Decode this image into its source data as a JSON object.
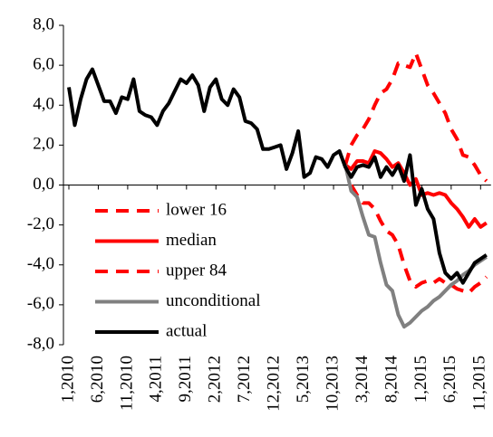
{
  "chart_data": {
    "type": "line",
    "categories": [
      "1,2010",
      null,
      null,
      null,
      null,
      "6,2010",
      null,
      null,
      null,
      null,
      "11,2010",
      null,
      null,
      null,
      null,
      "4,2011",
      null,
      null,
      null,
      null,
      "9,2011",
      null,
      null,
      null,
      null,
      "2,2012",
      null,
      null,
      null,
      null,
      "7,2012",
      null,
      null,
      null,
      null,
      "12,2012",
      null,
      null,
      null,
      null,
      "5,2013",
      null,
      null,
      null,
      null,
      "10,2013",
      null,
      null,
      null,
      null,
      "3,2014",
      null,
      null,
      null,
      null,
      "8,2014",
      null,
      null,
      null,
      null,
      "1,2015",
      null,
      null,
      null,
      null,
      "6,2015",
      null,
      null,
      null,
      null,
      "11,2015",
      null
    ],
    "ylim": [
      -8,
      8
    ],
    "yticks": [
      {
        "value": 8,
        "label": "8,0"
      },
      {
        "value": 6,
        "label": "6,0"
      },
      {
        "value": 4,
        "label": "4,0"
      },
      {
        "value": 2,
        "label": "2,0"
      },
      {
        "value": 0,
        "label": "0,0"
      },
      {
        "value": -2,
        "label": "-2,0"
      },
      {
        "value": -4,
        "label": "-4,0"
      },
      {
        "value": -6,
        "label": "-6,0"
      },
      {
        "value": -8,
        "label": "-8,0"
      }
    ],
    "legend": "lower left",
    "series": [
      {
        "name": "lower 16",
        "color": "#ff0000",
        "style": "dashed",
        "values": [
          null,
          null,
          null,
          null,
          null,
          null,
          null,
          null,
          null,
          null,
          null,
          null,
          null,
          null,
          null,
          null,
          null,
          null,
          null,
          null,
          null,
          null,
          null,
          null,
          null,
          null,
          null,
          null,
          null,
          null,
          null,
          null,
          null,
          null,
          null,
          null,
          null,
          null,
          null,
          null,
          null,
          null,
          null,
          null,
          null,
          null,
          null,
          1.0,
          2.0,
          2.5,
          2.8,
          3.3,
          4.0,
          4.6,
          4.8,
          5.3,
          6.1,
          6.0,
          5.9,
          6.6,
          5.8,
          5.0,
          4.6,
          4.1,
          3.6,
          2.8,
          2.3,
          1.5,
          1.4,
          1.0,
          0.5,
          0.2
        ]
      },
      {
        "name": "median",
        "color": "#ff0000",
        "style": "solid",
        "values": [
          null,
          null,
          null,
          null,
          null,
          null,
          null,
          null,
          null,
          null,
          null,
          null,
          null,
          null,
          null,
          null,
          null,
          null,
          null,
          null,
          null,
          null,
          null,
          null,
          null,
          null,
          null,
          null,
          null,
          null,
          null,
          null,
          null,
          null,
          null,
          null,
          null,
          null,
          null,
          null,
          null,
          null,
          null,
          null,
          null,
          null,
          null,
          1.0,
          0.8,
          1.2,
          1.2,
          1.1,
          1.7,
          1.6,
          1.3,
          0.9,
          1.1,
          0.6,
          0.0,
          0.3,
          -0.5,
          -0.4,
          -0.5,
          -0.4,
          -0.5,
          -0.9,
          -1.2,
          -1.6,
          -2.1,
          -1.7,
          -2.1,
          -1.9
        ]
      },
      {
        "name": "upper 84",
        "color": "#ff0000",
        "style": "dashed",
        "values": [
          null,
          null,
          null,
          null,
          null,
          null,
          null,
          null,
          null,
          null,
          null,
          null,
          null,
          null,
          null,
          null,
          null,
          null,
          null,
          null,
          null,
          null,
          null,
          null,
          null,
          null,
          null,
          null,
          null,
          null,
          null,
          null,
          null,
          null,
          null,
          null,
          null,
          null,
          null,
          null,
          null,
          null,
          null,
          null,
          null,
          null,
          null,
          1.0,
          0.0,
          -0.5,
          -0.9,
          -0.9,
          -1.2,
          -1.8,
          -2.3,
          -2.5,
          -3.0,
          -4.0,
          -4.8,
          -5.1,
          -4.9,
          -4.8,
          -4.9,
          -4.7,
          -4.9,
          -5.0,
          -5.2,
          -5.3,
          -5.4,
          -5.1,
          -4.9,
          -4.6
        ]
      },
      {
        "name": "unconditional",
        "color": "#808080",
        "style": "solid",
        "values": [
          null,
          null,
          null,
          null,
          null,
          null,
          null,
          null,
          null,
          null,
          null,
          null,
          null,
          null,
          null,
          null,
          null,
          null,
          null,
          null,
          null,
          null,
          null,
          null,
          null,
          null,
          null,
          null,
          null,
          null,
          null,
          null,
          null,
          null,
          null,
          null,
          null,
          null,
          null,
          null,
          null,
          null,
          null,
          null,
          null,
          null,
          null,
          1.0,
          -0.3,
          -0.6,
          -1.6,
          -2.5,
          -2.6,
          -3.9,
          -5.0,
          -5.3,
          -6.5,
          -7.1,
          -6.9,
          -6.6,
          -6.3,
          -6.1,
          -5.8,
          -5.6,
          -5.3,
          -5.0,
          -4.8,
          -4.5,
          -4.3,
          -4.0,
          -3.8,
          -3.6
        ]
      },
      {
        "name": "actual",
        "color": "#000000",
        "style": "solid",
        "values": [
          4.9,
          3.0,
          4.3,
          5.3,
          5.8,
          5.0,
          4.2,
          4.2,
          3.6,
          4.4,
          4.3,
          5.3,
          3.7,
          3.5,
          3.4,
          3.0,
          3.7,
          4.1,
          4.7,
          5.3,
          5.1,
          5.5,
          5.0,
          3.7,
          4.9,
          5.3,
          4.3,
          4.0,
          4.8,
          4.4,
          3.2,
          3.1,
          2.8,
          1.8,
          1.8,
          1.9,
          2.0,
          0.8,
          1.6,
          2.7,
          0.4,
          0.6,
          1.4,
          1.3,
          0.9,
          1.5,
          1.7,
          0.9,
          0.4,
          0.9,
          1.0,
          0.9,
          1.4,
          0.4,
          0.9,
          0.5,
          1.0,
          0.2,
          1.5,
          -1.0,
          -0.2,
          -1.2,
          -1.7,
          -3.4,
          -4.4,
          -4.7,
          -4.4,
          -4.9,
          -4.4,
          -3.9,
          -3.7,
          -3.5
        ]
      }
    ]
  }
}
